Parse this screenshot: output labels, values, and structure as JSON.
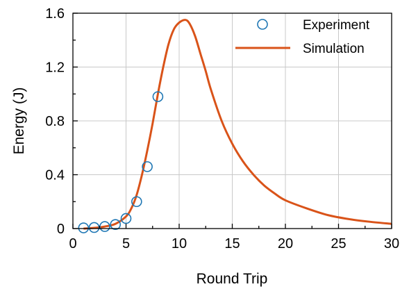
{
  "chart_data": {
    "type": "line",
    "xlabel": "Round Trip",
    "ylabel": "Energy (J)",
    "xlim": [
      0,
      30
    ],
    "ylim": [
      0,
      1.6
    ],
    "x_ticks": [
      "0",
      "5",
      "10",
      "15",
      "20",
      "25",
      "30"
    ],
    "y_ticks": [
      "0",
      "0.4",
      "0.8",
      "1.2",
      "1.6"
    ],
    "grid": true,
    "legend_position": "top-right",
    "series": [
      {
        "name": "Experiment",
        "kind": "scatter",
        "marker": "open-circle",
        "color": "#1f77b4",
        "x": [
          1,
          2,
          3,
          4,
          5,
          6,
          7,
          8
        ],
        "y": [
          0.005,
          0.008,
          0.015,
          0.03,
          0.075,
          0.2,
          0.46,
          0.98
        ]
      },
      {
        "name": "Simulation",
        "kind": "line",
        "color": "#d95319",
        "x": [
          1,
          2,
          3,
          4,
          5,
          5.5,
          6,
          6.5,
          7,
          7.5,
          8,
          8.5,
          9,
          9.5,
          10,
          10.6,
          11,
          11.5,
          12,
          12.5,
          13,
          14,
          15,
          16,
          17,
          18,
          19,
          20,
          22,
          24,
          26,
          28,
          30
        ],
        "y": [
          0.0,
          0.005,
          0.015,
          0.035,
          0.09,
          0.15,
          0.25,
          0.4,
          0.58,
          0.78,
          1.0,
          1.2,
          1.37,
          1.48,
          1.53,
          1.55,
          1.52,
          1.43,
          1.3,
          1.17,
          1.03,
          0.8,
          0.63,
          0.5,
          0.4,
          0.32,
          0.26,
          0.21,
          0.15,
          0.1,
          0.07,
          0.05,
          0.035
        ]
      }
    ]
  }
}
